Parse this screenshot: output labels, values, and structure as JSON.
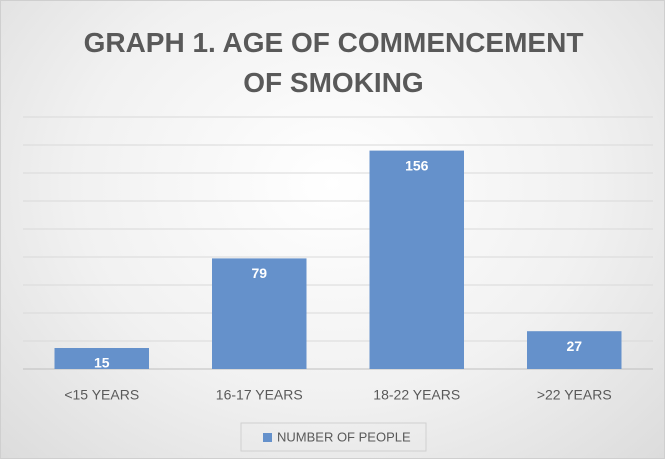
{
  "chart_data": {
    "type": "bar",
    "title": "GRAPH 1. AGE OF COMMENCEMENT OF SMOKING",
    "categories": [
      "<15 YEARS",
      "16-17 YEARS",
      "18-22 YEARS",
      ">22 YEARS"
    ],
    "series": [
      {
        "name": "NUMBER OF PEOPLE",
        "color": "#6591cb",
        "values": [
          15,
          79,
          156,
          27
        ]
      }
    ],
    "ylim": [
      0,
      180
    ],
    "yticks": [
      0,
      20,
      40,
      60,
      80,
      100,
      120,
      140,
      160,
      180
    ],
    "grid": true,
    "legend": "bottom"
  }
}
